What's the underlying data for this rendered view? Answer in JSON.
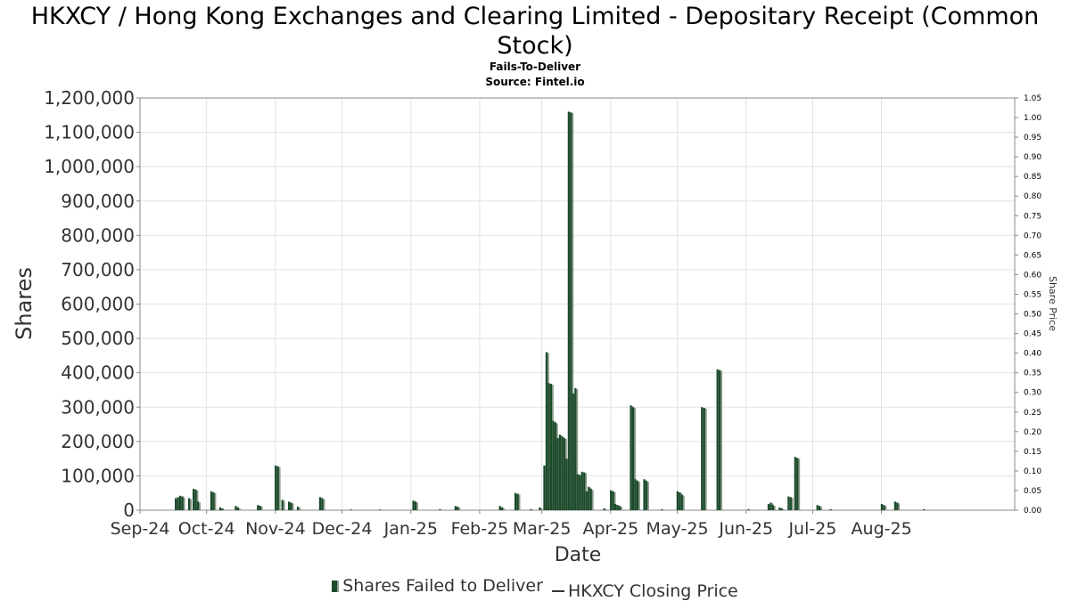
{
  "chart_data": {
    "type": "bar",
    "title": "HKXCY / Hong Kong Exchanges and Clearing Limited - Depositary Receipt (Common Stock)",
    "subtitles": [
      "Fails-To-Deliver",
      "Source: Fintel.io"
    ],
    "xlabel": "Date",
    "ylabel": "Shares",
    "y2label": "Share Price",
    "ylim": [
      0,
      1200000
    ],
    "y2lim": [
      0,
      1.05
    ],
    "yticks": [
      "0",
      "100,000",
      "200,000",
      "300,000",
      "400,000",
      "500,000",
      "600,000",
      "700,000",
      "800,000",
      "900,000",
      "1,000,000",
      "1,100,000",
      "1,200,000"
    ],
    "y2ticks": [
      "0.00",
      "0.05",
      "0.10",
      "0.15",
      "0.20",
      "0.25",
      "0.30",
      "0.35",
      "0.40",
      "0.45",
      "0.50",
      "0.55",
      "0.60",
      "0.65",
      "0.70",
      "0.75",
      "0.80",
      "0.85",
      "0.90",
      "0.95",
      "1.00",
      "1.05"
    ],
    "xlim": [
      "2024-09-01",
      "2025-09-30"
    ],
    "xticks": [
      {
        "date": "2024-09-01",
        "label": "Sep-24"
      },
      {
        "date": "2024-10-01",
        "label": "Oct-24"
      },
      {
        "date": "2024-11-01",
        "label": "Nov-24"
      },
      {
        "date": "2024-12-01",
        "label": "Dec-24"
      },
      {
        "date": "2025-01-01",
        "label": "Jan-25"
      },
      {
        "date": "2025-02-01",
        "label": "Feb-25"
      },
      {
        "date": "2025-03-01",
        "label": "Mar-25"
      },
      {
        "date": "2025-04-01",
        "label": "Apr-25"
      },
      {
        "date": "2025-05-01",
        "label": "May-25"
      },
      {
        "date": "2025-06-01",
        "label": "Jun-25"
      },
      {
        "date": "2025-07-01",
        "label": "Jul-25"
      },
      {
        "date": "2025-08-01",
        "label": "Aug-25"
      }
    ],
    "grid": true,
    "legend_position": "bottom",
    "series": [
      {
        "name": "Shares Failed to Deliver",
        "color": "#1a4a2a",
        "points": [
          [
            "2024-09-17",
            35000
          ],
          [
            "2024-09-18",
            38000
          ],
          [
            "2024-09-19",
            42000
          ],
          [
            "2024-09-20",
            40000
          ],
          [
            "2024-09-23",
            35000
          ],
          [
            "2024-09-25",
            62000
          ],
          [
            "2024-09-26",
            60000
          ],
          [
            "2024-09-27",
            25000
          ],
          [
            "2024-10-03",
            55000
          ],
          [
            "2024-10-04",
            52000
          ],
          [
            "2024-10-07",
            8000
          ],
          [
            "2024-10-08",
            5000
          ],
          [
            "2024-10-14",
            12000
          ],
          [
            "2024-10-15",
            8000
          ],
          [
            "2024-10-24",
            15000
          ],
          [
            "2024-10-25",
            13000
          ],
          [
            "2024-11-01",
            130000
          ],
          [
            "2024-11-02",
            128000
          ],
          [
            "2024-11-04",
            30000
          ],
          [
            "2024-11-07",
            25000
          ],
          [
            "2024-11-08",
            22000
          ],
          [
            "2024-11-11",
            10000
          ],
          [
            "2024-11-21",
            38000
          ],
          [
            "2024-11-22",
            35000
          ],
          [
            "2024-12-05",
            2000
          ],
          [
            "2024-12-18",
            2000
          ],
          [
            "2025-01-02",
            28000
          ],
          [
            "2025-01-03",
            25000
          ],
          [
            "2025-01-14",
            3000
          ],
          [
            "2025-01-21",
            12000
          ],
          [
            "2025-01-22",
            10000
          ],
          [
            "2025-02-10",
            12000
          ],
          [
            "2025-02-11",
            8000
          ],
          [
            "2025-02-17",
            50000
          ],
          [
            "2025-02-18",
            48000
          ],
          [
            "2025-02-24",
            3000
          ],
          [
            "2025-02-28",
            8000
          ],
          [
            "2025-03-02",
            130000
          ],
          [
            "2025-03-03",
            460000
          ],
          [
            "2025-03-04",
            370000
          ],
          [
            "2025-03-05",
            368000
          ],
          [
            "2025-03-06",
            260000
          ],
          [
            "2025-03-07",
            255000
          ],
          [
            "2025-03-08",
            210000
          ],
          [
            "2025-03-09",
            220000
          ],
          [
            "2025-03-10",
            215000
          ],
          [
            "2025-03-11",
            210000
          ],
          [
            "2025-03-12",
            150000
          ],
          [
            "2025-03-13",
            1160000
          ],
          [
            "2025-03-14",
            1158000
          ],
          [
            "2025-03-15",
            340000
          ],
          [
            "2025-03-16",
            355000
          ],
          [
            "2025-03-17",
            105000
          ],
          [
            "2025-03-18",
            103000
          ],
          [
            "2025-03-19",
            112000
          ],
          [
            "2025-03-20",
            110000
          ],
          [
            "2025-03-21",
            55000
          ],
          [
            "2025-03-22",
            68000
          ],
          [
            "2025-03-23",
            62000
          ],
          [
            "2025-03-29",
            5000
          ],
          [
            "2025-04-01",
            58000
          ],
          [
            "2025-04-02",
            55000
          ],
          [
            "2025-04-03",
            18000
          ],
          [
            "2025-04-04",
            15000
          ],
          [
            "2025-04-05",
            12000
          ],
          [
            "2025-04-10",
            305000
          ],
          [
            "2025-04-11",
            300000
          ],
          [
            "2025-04-12",
            90000
          ],
          [
            "2025-04-13",
            85000
          ],
          [
            "2025-04-16",
            90000
          ],
          [
            "2025-04-17",
            85000
          ],
          [
            "2025-04-24",
            3000
          ],
          [
            "2025-05-01",
            55000
          ],
          [
            "2025-05-02",
            52000
          ],
          [
            "2025-05-03",
            45000
          ],
          [
            "2025-05-12",
            300000
          ],
          [
            "2025-05-13",
            298000
          ],
          [
            "2025-05-19",
            410000
          ],
          [
            "2025-05-20",
            408000
          ],
          [
            "2025-06-02",
            3000
          ],
          [
            "2025-06-11",
            18000
          ],
          [
            "2025-06-12",
            22000
          ],
          [
            "2025-06-13",
            15000
          ],
          [
            "2025-06-16",
            8000
          ],
          [
            "2025-06-17",
            5000
          ],
          [
            "2025-06-20",
            40000
          ],
          [
            "2025-06-21",
            38000
          ],
          [
            "2025-06-23",
            155000
          ],
          [
            "2025-06-24",
            152000
          ],
          [
            "2025-07-03",
            15000
          ],
          [
            "2025-07-04",
            12000
          ],
          [
            "2025-07-09",
            3000
          ],
          [
            "2025-08-01",
            18000
          ],
          [
            "2025-08-02",
            15000
          ],
          [
            "2025-08-07",
            25000
          ],
          [
            "2025-08-08",
            22000
          ],
          [
            "2025-08-20",
            3000
          ]
        ]
      },
      {
        "name": "HKXCY Closing Price",
        "color": "#333333",
        "points": []
      }
    ]
  }
}
